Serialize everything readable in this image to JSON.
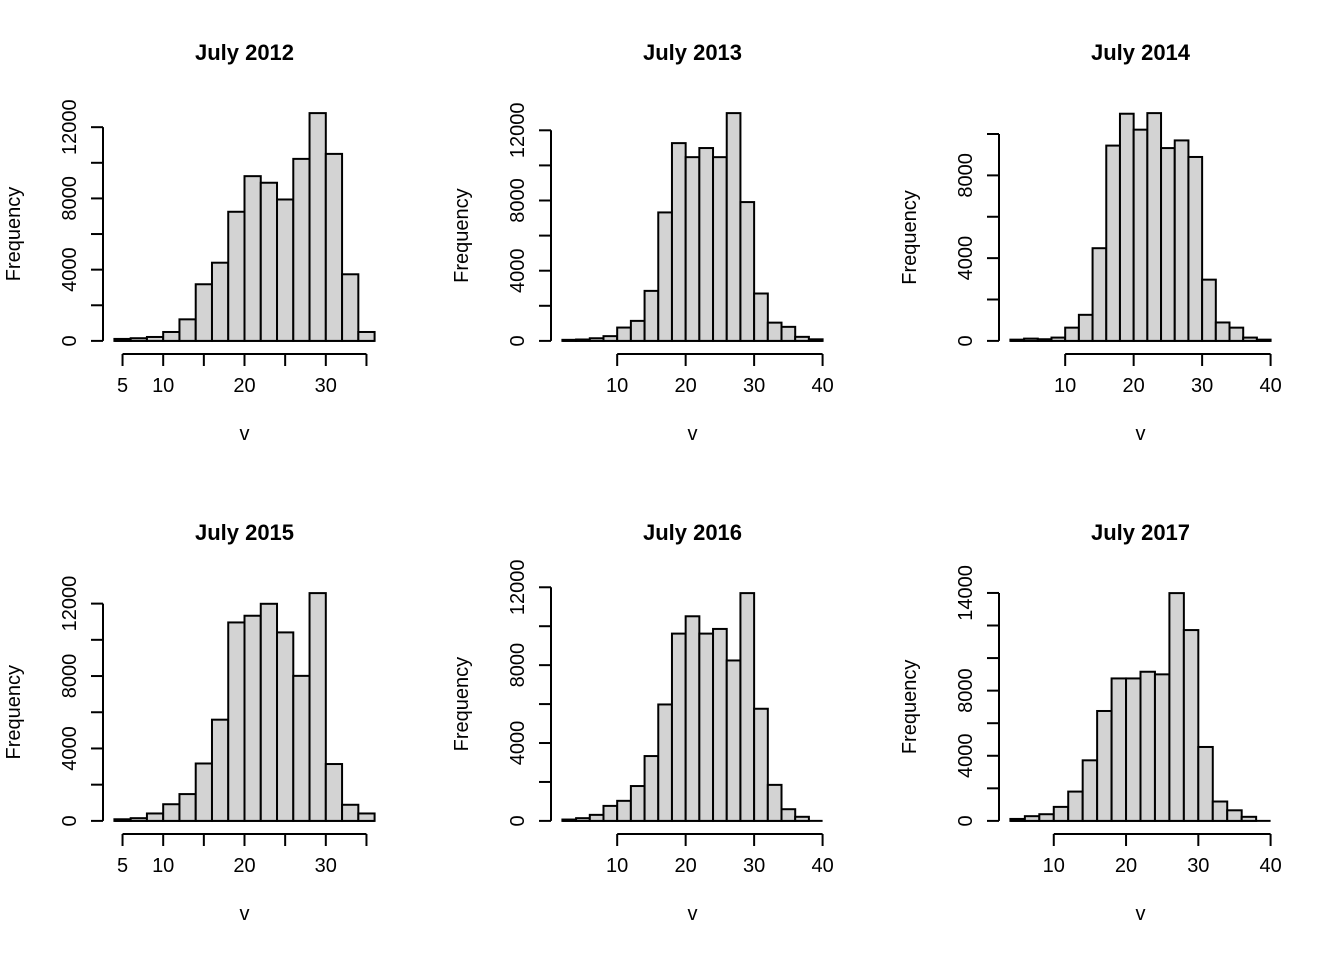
{
  "page": {
    "background": "#ffffff",
    "text_color": "#000000"
  },
  "colors": {
    "bar_fill": "#d3d3d3",
    "bar_border": "#000000",
    "axis": "#000000"
  },
  "chart_data": [
    {
      "type": "bar",
      "title": "July 2012",
      "xlabel": "v",
      "ylabel": "Frequency",
      "bin_start": 4,
      "bin_width": 2,
      "counts": [
        110,
        150,
        220,
        500,
        1210,
        3180,
        4390,
        7250,
        9250,
        8880,
        7940,
        10220,
        12790,
        10500,
        3740,
        500
      ],
      "x_ticks": [
        {
          "v": 5,
          "label": "5"
        },
        {
          "v": 10,
          "label": "10"
        },
        {
          "v": 15,
          "label": ""
        },
        {
          "v": 20,
          "label": "20"
        },
        {
          "v": 25,
          "label": ""
        },
        {
          "v": 30,
          "label": "30"
        },
        {
          "v": 35,
          "label": ""
        }
      ],
      "y_tick_step": 2000,
      "y_tick_max": 12000,
      "y_labeled_ticks": [
        0,
        4000,
        8000,
        12000
      ],
      "ylim": [
        0,
        12790
      ],
      "grid": false,
      "legend": "none"
    },
    {
      "type": "bar",
      "title": "July 2013",
      "xlabel": "v",
      "ylabel": "Frequency",
      "bin_start": 2,
      "bin_width": 2,
      "counts": [
        60,
        80,
        150,
        270,
        760,
        1140,
        2850,
        7320,
        11270,
        10470,
        10990,
        10470,
        12980,
        7910,
        2700,
        1040,
        800,
        230,
        90
      ],
      "x_ticks": [
        {
          "v": 10,
          "label": "10"
        },
        {
          "v": 20,
          "label": "20"
        },
        {
          "v": 30,
          "label": "30"
        },
        {
          "v": 40,
          "label": "40"
        }
      ],
      "y_tick_step": 2000,
      "y_tick_max": 12000,
      "y_labeled_ticks": [
        0,
        4000,
        8000,
        12000
      ],
      "ylim": [
        0,
        12980
      ],
      "grid": false,
      "legend": "none"
    },
    {
      "type": "bar",
      "title": "July 2014",
      "xlabel": "v",
      "ylabel": "Frequency",
      "bin_start": 2,
      "bin_width": 2,
      "counts": [
        60,
        110,
        80,
        160,
        640,
        1260,
        4480,
        9440,
        10980,
        10210,
        11010,
        9320,
        9690,
        8890,
        2960,
        890,
        640,
        160,
        60
      ],
      "x_ticks": [
        {
          "v": 10,
          "label": "10"
        },
        {
          "v": 20,
          "label": "20"
        },
        {
          "v": 30,
          "label": "30"
        },
        {
          "v": 40,
          "label": "40"
        }
      ],
      "y_tick_step": 2000,
      "y_tick_max": 10000,
      "y_labeled_ticks": [
        0,
        4000,
        8000
      ],
      "ylim": [
        0,
        11010
      ],
      "grid": false,
      "legend": "none"
    },
    {
      "type": "bar",
      "title": "July 2015",
      "xlabel": "v",
      "ylabel": "Frequency",
      "bin_start": 4,
      "bin_width": 2,
      "counts": [
        90,
        150,
        410,
        920,
        1480,
        3170,
        5590,
        10960,
        11330,
        11990,
        10410,
        8010,
        12580,
        3140,
        890,
        410
      ],
      "x_ticks": [
        {
          "v": 5,
          "label": "5"
        },
        {
          "v": 10,
          "label": "10"
        },
        {
          "v": 15,
          "label": ""
        },
        {
          "v": 20,
          "label": "20"
        },
        {
          "v": 25,
          "label": ""
        },
        {
          "v": 30,
          "label": "30"
        },
        {
          "v": 35,
          "label": ""
        }
      ],
      "y_tick_step": 2000,
      "y_tick_max": 12000,
      "y_labeled_ticks": [
        0,
        4000,
        8000,
        12000
      ],
      "ylim": [
        0,
        12580
      ],
      "grid": false,
      "legend": "none"
    },
    {
      "type": "bar",
      "title": "July 2016",
      "xlabel": "v",
      "ylabel": "Frequency",
      "bin_start": 2,
      "bin_width": 2,
      "counts": [
        70,
        140,
        310,
        770,
        1030,
        1790,
        3330,
        5980,
        9620,
        10510,
        9620,
        9860,
        8240,
        11700,
        5760,
        1850,
        600,
        210,
        30
      ],
      "x_ticks": [
        {
          "v": 10,
          "label": "10"
        },
        {
          "v": 20,
          "label": "20"
        },
        {
          "v": 30,
          "label": "30"
        },
        {
          "v": 40,
          "label": "40"
        }
      ],
      "y_tick_step": 2000,
      "y_tick_max": 12000,
      "y_labeled_ticks": [
        0,
        4000,
        8000,
        12000
      ],
      "ylim": [
        0,
        11700
      ],
      "grid": false,
      "legend": "none"
    },
    {
      "type": "bar",
      "title": "July 2017",
      "xlabel": "v",
      "ylabel": "Frequency",
      "bin_start": 4,
      "bin_width": 2,
      "counts": [
        120,
        290,
        410,
        860,
        1800,
        3720,
        6750,
        8750,
        8750,
        9160,
        9000,
        13990,
        11720,
        4540,
        1190,
        650,
        250,
        30
      ],
      "x_ticks": [
        {
          "v": 10,
          "label": "10"
        },
        {
          "v": 20,
          "label": "20"
        },
        {
          "v": 30,
          "label": "30"
        },
        {
          "v": 40,
          "label": "40"
        }
      ],
      "y_tick_step": 2000,
      "y_tick_max": 14000,
      "y_labeled_ticks": [
        0,
        4000,
        8000,
        14000
      ],
      "ylim": [
        0,
        13990
      ],
      "grid": false,
      "legend": "none"
    }
  ]
}
